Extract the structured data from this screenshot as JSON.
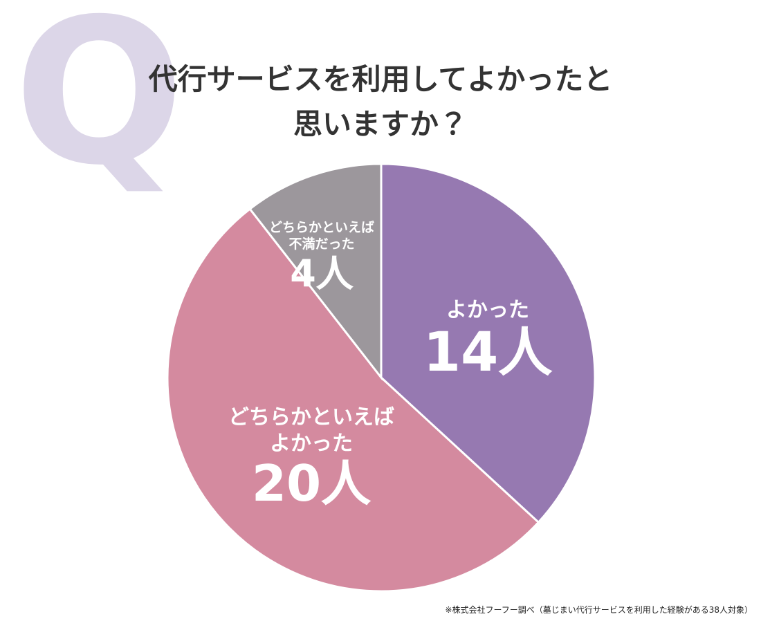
{
  "q_mark": "Q",
  "chart_data": {
    "type": "pie",
    "title": "代行サービスを利用してよかったと思いますか？",
    "categories": [
      "よかった",
      "どちらかといえばよかった",
      "どちらかといえば不満だった"
    ],
    "values": [
      14,
      20,
      4
    ],
    "value_labels": [
      "14人",
      "20人",
      "4人"
    ],
    "colors": [
      "#9679b1",
      "#d48a9f",
      "#9c979c"
    ],
    "footnote": "※株式会社フーフー調べ（墓じまい代行サービスを利用した経験がある38人対象）"
  }
}
